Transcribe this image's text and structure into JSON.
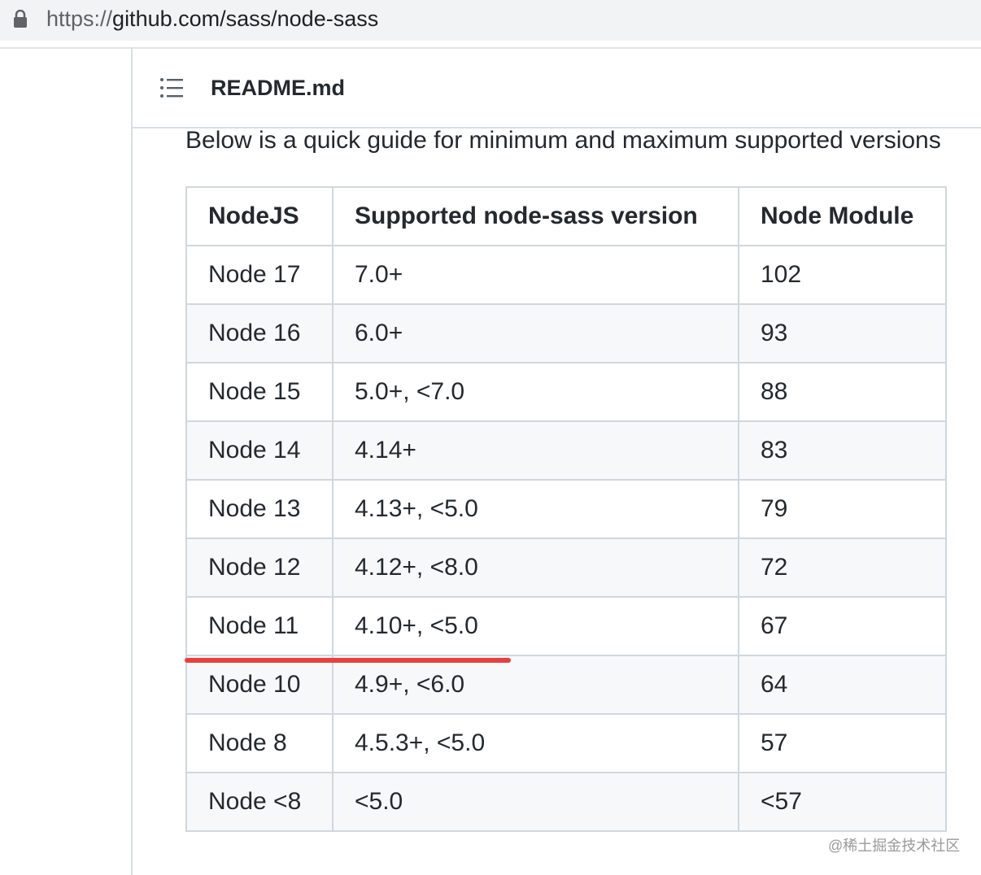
{
  "browser": {
    "url_scheme": "https://",
    "url_path": "github.com/sass/node-sass"
  },
  "file": {
    "title": "README.md"
  },
  "content": {
    "intro": "Below is a quick guide for minimum and maximum supported versions"
  },
  "table": {
    "header": [
      "NodeJS",
      "Supported node-sass version",
      "Node Module"
    ],
    "rows": [
      [
        "Node 17",
        "7.0+",
        "102"
      ],
      [
        "Node 16",
        "6.0+",
        "93"
      ],
      [
        "Node 15",
        "5.0+, <7.0",
        "88"
      ],
      [
        "Node 14",
        "4.14+",
        "83"
      ],
      [
        "Node 13",
        "4.13+, <5.0",
        "79"
      ],
      [
        "Node 12",
        "4.12+, <8.0",
        "72"
      ],
      [
        "Node 11",
        "4.10+, <5.0",
        "67"
      ],
      [
        "Node 10",
        "4.9+, <6.0",
        "64"
      ],
      [
        "Node 8",
        "4.5.3+, <5.0",
        "57"
      ],
      [
        "Node <8",
        "<5.0",
        "<57"
      ]
    ]
  },
  "watermark": "@稀土掘金技术社区"
}
